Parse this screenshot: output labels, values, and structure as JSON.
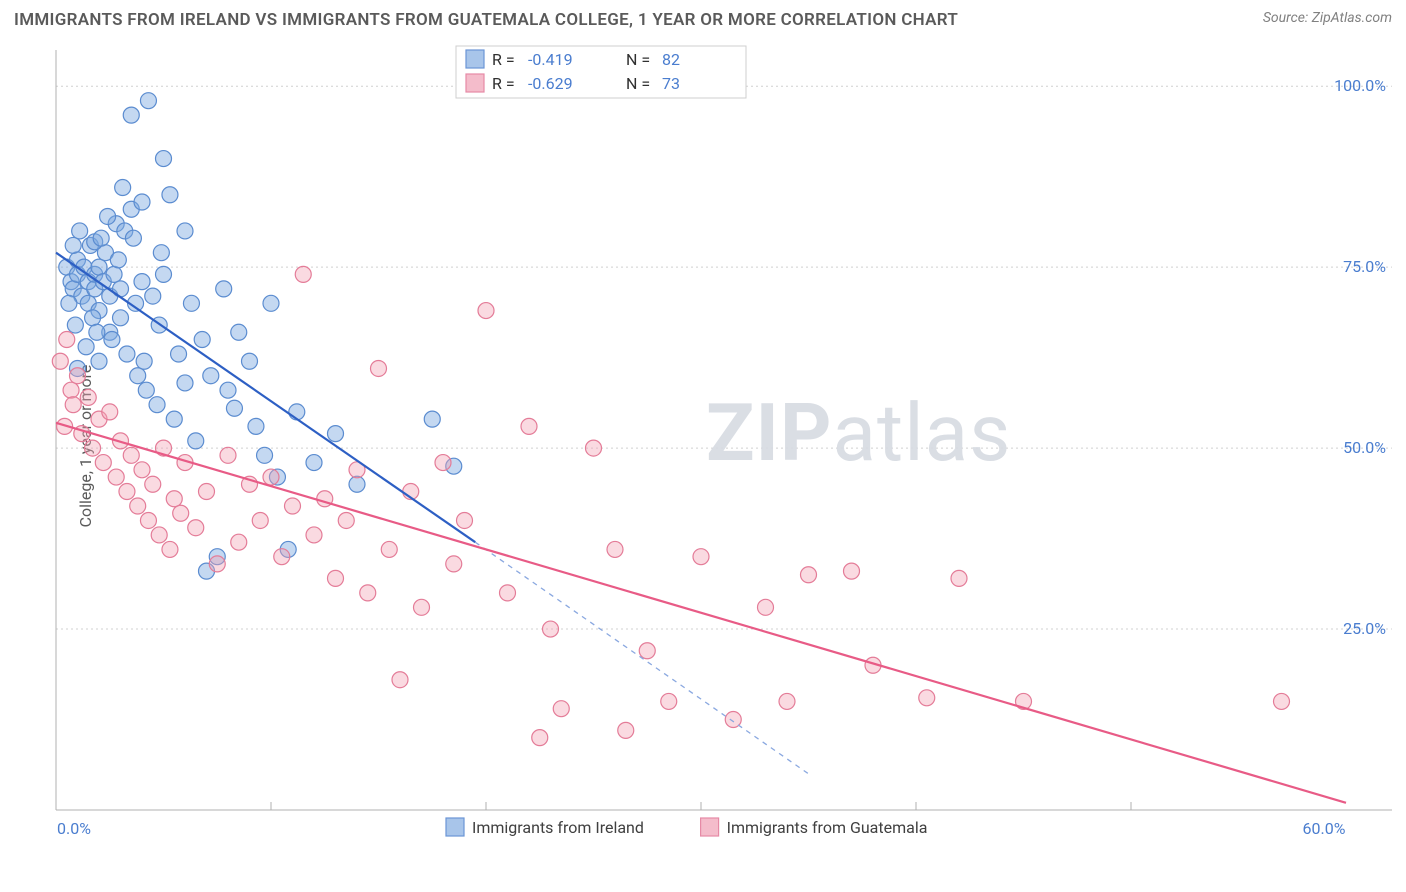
{
  "title": "IMMIGRANTS FROM IRELAND VS IMMIGRANTS FROM GUATEMALA COLLEGE, 1 YEAR OR MORE CORRELATION CHART",
  "source": "Source: ZipAtlas.com",
  "y_axis_label": "College, 1 year or more",
  "watermark": {
    "bold": "ZIP",
    "rest": "atlas"
  },
  "chart": {
    "type": "scatter-with-trend",
    "background_color": "#ffffff",
    "grid_color": "#d0d0d0",
    "axis_color": "#b0b0b0",
    "label_color": "#4a7dcf",
    "xlim": [
      0,
      60
    ],
    "ylim": [
      0,
      105
    ],
    "ytick_values": [
      25,
      50,
      75,
      100
    ],
    "ytick_labels": [
      "25.0%",
      "50.0%",
      "75.0%",
      "100.0%"
    ],
    "xtick_values": [
      0,
      60
    ],
    "xtick_labels": [
      "0.0%",
      "60.0%"
    ],
    "x_minor_ticks": [
      10,
      20,
      30,
      40,
      50
    ],
    "marker_radius": 8,
    "series": [
      {
        "name": "Immigrants from Ireland",
        "color_fill": "#7ca9e0",
        "color_stroke": "#5b8cd0",
        "trend_color": "#2d5fc4",
        "R": "-0.419",
        "N": "82",
        "trend": {
          "x1": 0,
          "y1": 77,
          "x_solid_end": 19.5,
          "y_solid_end": 37,
          "x2": 35,
          "y2": 5
        },
        "points": [
          [
            0.5,
            75
          ],
          [
            0.7,
            73
          ],
          [
            0.8,
            72
          ],
          [
            1.0,
            74
          ],
          [
            1.0,
            76
          ],
          [
            1.2,
            71
          ],
          [
            1.3,
            75
          ],
          [
            1.5,
            73
          ],
          [
            1.5,
            70
          ],
          [
            1.6,
            78
          ],
          [
            1.8,
            74
          ],
          [
            1.8,
            72
          ],
          [
            2.0,
            69
          ],
          [
            2.0,
            75
          ],
          [
            2.2,
            73
          ],
          [
            2.3,
            77
          ],
          [
            2.5,
            71
          ],
          [
            2.5,
            66
          ],
          [
            2.7,
            74
          ],
          [
            2.8,
            81
          ],
          [
            3.0,
            72
          ],
          [
            3.0,
            68
          ],
          [
            3.2,
            80
          ],
          [
            3.3,
            63
          ],
          [
            3.5,
            83
          ],
          [
            3.5,
            96
          ],
          [
            3.7,
            70
          ],
          [
            3.8,
            60
          ],
          [
            4.0,
            84
          ],
          [
            4.0,
            73
          ],
          [
            4.2,
            58
          ],
          [
            4.3,
            98
          ],
          [
            4.5,
            71
          ],
          [
            4.7,
            56
          ],
          [
            4.8,
            67
          ],
          [
            5.0,
            90
          ],
          [
            5.0,
            74
          ],
          [
            5.3,
            85
          ],
          [
            5.5,
            54
          ],
          [
            5.7,
            63
          ],
          [
            6.0,
            80
          ],
          [
            6.0,
            59
          ],
          [
            6.3,
            70
          ],
          [
            6.5,
            51
          ],
          [
            6.8,
            65
          ],
          [
            7.0,
            33
          ],
          [
            7.2,
            60
          ],
          [
            7.5,
            35
          ],
          [
            7.8,
            72
          ],
          [
            8.0,
            58
          ],
          [
            8.3,
            55.5
          ],
          [
            8.5,
            66
          ],
          [
            9.0,
            62
          ],
          [
            9.3,
            53
          ],
          [
            9.7,
            49
          ],
          [
            10.0,
            70
          ],
          [
            10.3,
            46
          ],
          [
            10.8,
            36
          ],
          [
            11.2,
            55
          ],
          [
            12.0,
            48
          ],
          [
            13.0,
            52
          ],
          [
            14.0,
            45
          ],
          [
            17.5,
            54
          ],
          [
            18.5,
            47.5
          ],
          [
            1.0,
            61
          ],
          [
            1.4,
            64
          ],
          [
            2.0,
            62
          ],
          [
            2.6,
            65
          ],
          [
            0.9,
            67
          ],
          [
            1.8,
            78.5
          ],
          [
            2.9,
            76
          ],
          [
            3.6,
            79
          ],
          [
            4.1,
            62
          ],
          [
            4.9,
            77
          ],
          [
            1.1,
            80
          ],
          [
            1.7,
            68
          ],
          [
            0.6,
            70
          ],
          [
            2.1,
            79
          ],
          [
            1.9,
            66
          ],
          [
            2.4,
            82
          ],
          [
            0.8,
            78
          ],
          [
            3.1,
            86
          ]
        ]
      },
      {
        "name": "Immigrants from Guatemala",
        "color_fill": "#f2a3b5",
        "color_stroke": "#e47c98",
        "trend_color": "#e85b86",
        "R": "-0.629",
        "N": "73",
        "trend": {
          "x1": 0,
          "y1": 53.5,
          "x2": 60,
          "y2": 1
        },
        "points": [
          [
            0.2,
            62
          ],
          [
            0.5,
            65
          ],
          [
            0.7,
            58
          ],
          [
            0.8,
            56
          ],
          [
            1.0,
            60
          ],
          [
            1.2,
            52
          ],
          [
            1.5,
            57
          ],
          [
            1.7,
            50
          ],
          [
            2.0,
            54
          ],
          [
            2.2,
            48
          ],
          [
            2.5,
            55
          ],
          [
            2.8,
            46
          ],
          [
            3.0,
            51
          ],
          [
            3.3,
            44
          ],
          [
            3.5,
            49
          ],
          [
            3.8,
            42
          ],
          [
            4.0,
            47
          ],
          [
            4.3,
            40
          ],
          [
            4.5,
            45
          ],
          [
            4.8,
            38
          ],
          [
            5.0,
            50
          ],
          [
            5.3,
            36
          ],
          [
            5.5,
            43
          ],
          [
            5.8,
            41
          ],
          [
            6.0,
            48
          ],
          [
            6.5,
            39
          ],
          [
            7.0,
            44
          ],
          [
            7.5,
            34
          ],
          [
            8.0,
            49
          ],
          [
            8.5,
            37
          ],
          [
            9.0,
            45
          ],
          [
            9.5,
            40
          ],
          [
            10.0,
            46
          ],
          [
            10.5,
            35
          ],
          [
            11.0,
            42
          ],
          [
            11.5,
            74
          ],
          [
            12.0,
            38
          ],
          [
            12.5,
            43
          ],
          [
            13.0,
            32
          ],
          [
            13.5,
            40
          ],
          [
            14.0,
            47
          ],
          [
            14.5,
            30
          ],
          [
            15.0,
            61
          ],
          [
            15.5,
            36
          ],
          [
            16.0,
            18
          ],
          [
            16.5,
            44
          ],
          [
            17.0,
            28
          ],
          [
            18.0,
            48
          ],
          [
            18.5,
            34
          ],
          [
            19.0,
            40
          ],
          [
            20.0,
            69
          ],
          [
            21.0,
            30
          ],
          [
            22.0,
            53
          ],
          [
            22.5,
            10
          ],
          [
            23.0,
            25
          ],
          [
            23.5,
            14
          ],
          [
            25.0,
            50
          ],
          [
            26.0,
            36
          ],
          [
            26.5,
            11
          ],
          [
            27.5,
            22
          ],
          [
            28.5,
            15
          ],
          [
            30.0,
            35
          ],
          [
            31.5,
            12.5
          ],
          [
            33.0,
            28
          ],
          [
            34.0,
            15
          ],
          [
            35.0,
            32.5
          ],
          [
            37.0,
            33
          ],
          [
            38.0,
            20
          ],
          [
            40.5,
            15.5
          ],
          [
            42.0,
            32
          ],
          [
            45.0,
            15
          ],
          [
            57.0,
            15
          ],
          [
            0.4,
            53
          ]
        ]
      }
    ],
    "legend_top": {
      "rows": [
        {
          "swatch": "blue",
          "R_label": "R =",
          "R_value": "-0.419",
          "N_label": "N =",
          "N_value": "82"
        },
        {
          "swatch": "pink",
          "R_label": "R =",
          "R_value": "-0.629",
          "N_label": "N =",
          "N_value": "73"
        }
      ]
    },
    "legend_bottom": [
      {
        "swatch": "blue",
        "label": "Immigrants from Ireland"
      },
      {
        "swatch": "pink",
        "label": "Immigrants from Guatemala"
      }
    ]
  }
}
